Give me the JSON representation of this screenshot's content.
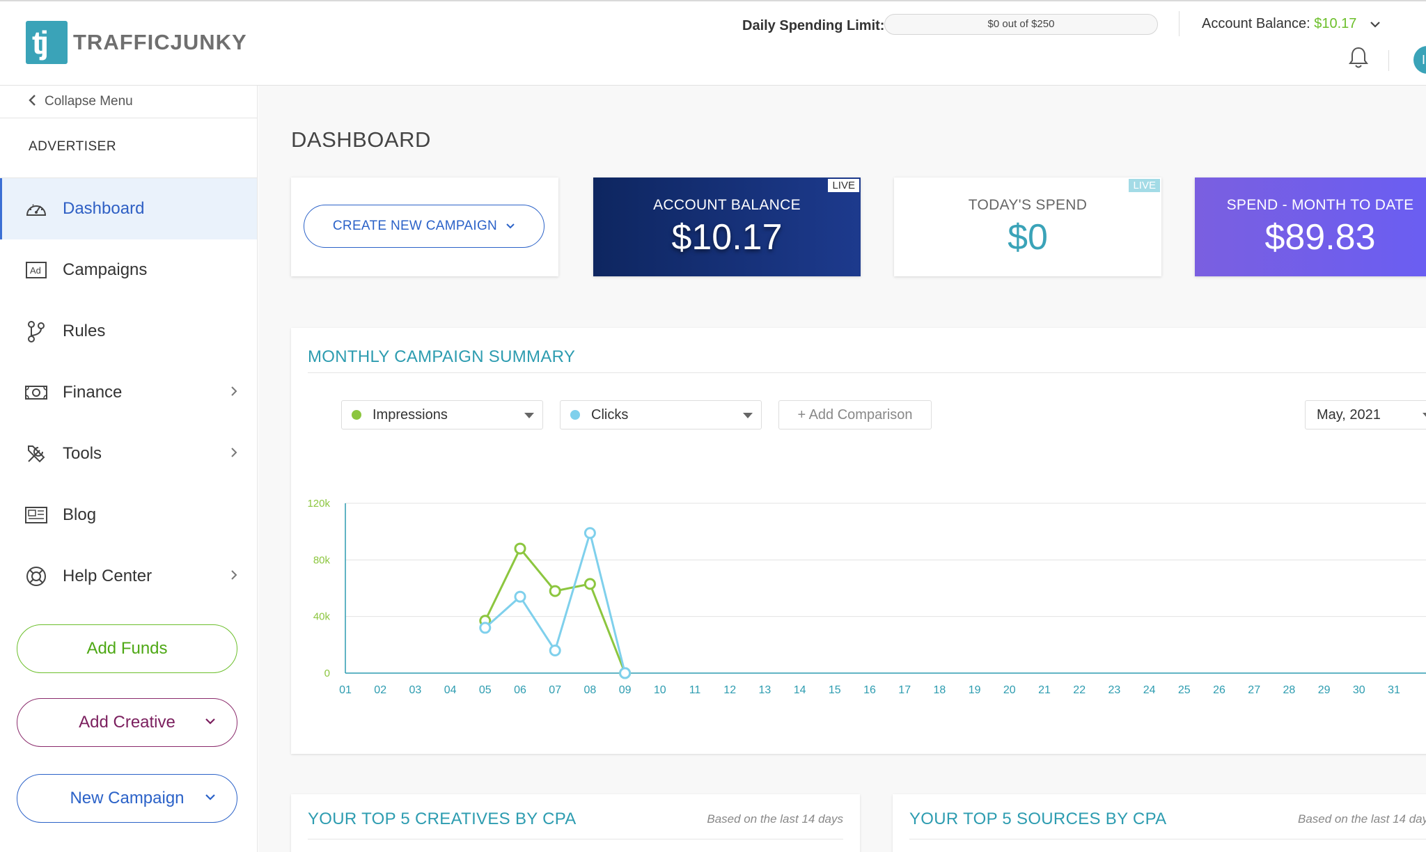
{
  "header": {
    "logo_mark": "tj",
    "logo_text": "TRAFFICJUNKY",
    "spending_limit_label": "Daily Spending Limit:",
    "spending_limit_text": "$0 out of $250",
    "spending_limit_progress": 0,
    "account_balance_label": "Account Balance: ",
    "account_balance_value": "$10.17",
    "avatar_initials": "II"
  },
  "sidebar": {
    "collapse_label": "Collapse Menu",
    "section_label": "ADVERTISER",
    "items": [
      {
        "label": "Dashboard",
        "icon": "dashboard-gauge-icon",
        "active": true
      },
      {
        "label": "Campaigns",
        "icon": "ad-icon"
      },
      {
        "label": "Rules",
        "icon": "branch-icon"
      },
      {
        "label": "Finance",
        "icon": "money-icon",
        "submenu": true
      },
      {
        "label": "Tools",
        "icon": "tools-icon",
        "submenu": true
      },
      {
        "label": "Blog",
        "icon": "newspaper-icon"
      },
      {
        "label": "Help Center",
        "icon": "lifebuoy-icon",
        "submenu": true
      }
    ],
    "buttons": {
      "add_funds": "Add Funds",
      "add_creative": "Add Creative",
      "new_campaign": "New Campaign"
    }
  },
  "main": {
    "title": "DASHBOARD",
    "create_campaign": "CREATE NEW CAMPAIGN",
    "cards": {
      "account_balance": {
        "title": "ACCOUNT BALANCE",
        "value": "$10.17",
        "badge": "LIVE"
      },
      "todays_spend": {
        "title": "TODAY'S SPEND",
        "value": "$0",
        "badge": "LIVE"
      },
      "spend_month": {
        "title": "SPEND - MONTH TO DATE",
        "value": "$89.83"
      }
    },
    "summary": {
      "title": "MONTHLY CAMPAIGN SUMMARY",
      "metric1": "Impressions",
      "metric2": "Clicks",
      "add_comparison": "+ Add Comparison",
      "month": "May, 2021"
    },
    "top_creatives": {
      "title": "YOUR TOP 5 CREATIVES BY CPA",
      "note": "Based on the last 14 days"
    },
    "top_sources": {
      "title": "YOUR TOP 5 SOURCES BY CPA",
      "note": "Based on the last 14 days"
    }
  },
  "colors": {
    "impressions": "#8cc63f",
    "clicks": "#7fd0ec",
    "accent": "#2d9cb0",
    "primary": "#2b62c8"
  },
  "chart_data": {
    "type": "line",
    "x": [
      "01",
      "02",
      "03",
      "04",
      "05",
      "06",
      "07",
      "08",
      "09",
      "10",
      "11",
      "12",
      "13",
      "14",
      "15",
      "16",
      "17",
      "18",
      "19",
      "20",
      "21",
      "22",
      "23",
      "24",
      "25",
      "26",
      "27",
      "28",
      "29",
      "30",
      "31"
    ],
    "ytick_labels": [
      "0",
      "40k",
      "80k",
      "120k"
    ],
    "ylim": [
      0,
      120000
    ],
    "grid": true,
    "series": [
      {
        "name": "Impressions",
        "x": [
          "05",
          "06",
          "07",
          "08",
          "09"
        ],
        "values": [
          37000,
          88000,
          58000,
          63000,
          0
        ]
      },
      {
        "name": "Clicks",
        "x": [
          "05",
          "06",
          "07",
          "08",
          "09"
        ],
        "values": [
          32000,
          54000,
          16000,
          99000,
          0
        ]
      }
    ]
  }
}
